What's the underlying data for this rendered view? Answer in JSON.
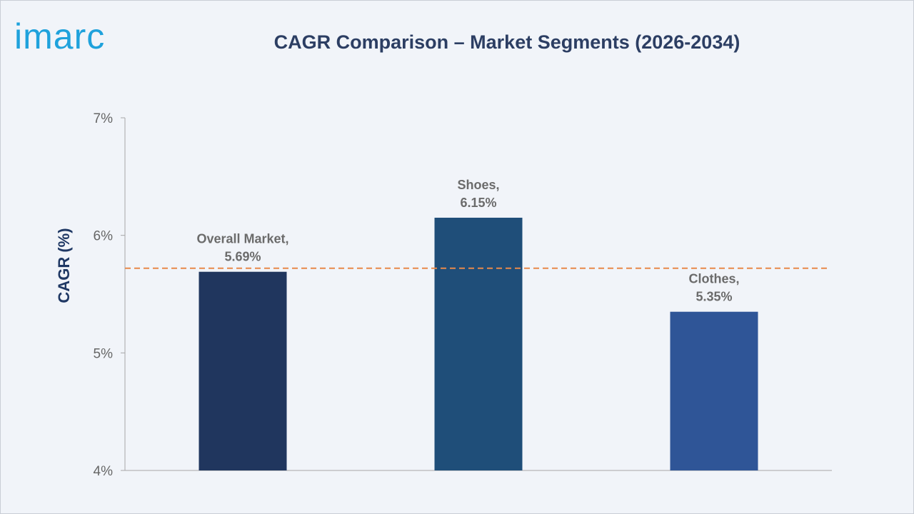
{
  "logo": {
    "text": "imarc",
    "color": "#1fa2dc"
  },
  "chart_data": {
    "type": "bar",
    "title": "CAGR Comparison – Market Segments (2026-2034)",
    "ylabel": "CAGR (%)",
    "xlabel": "",
    "categories": [
      "Overall Market",
      "Shoes",
      "Clothes"
    ],
    "values": [
      5.69,
      6.15,
      5.35
    ],
    "data_labels": [
      [
        "Overall Market,",
        "5.69%"
      ],
      [
        "Shoes,",
        "6.15%"
      ],
      [
        "Clothes,",
        "5.35%"
      ]
    ],
    "bar_colors": [
      "#20365e",
      "#1f4e79",
      "#2f5597"
    ],
    "ylim": [
      4,
      7
    ],
    "yticks": [
      4,
      5,
      6,
      7
    ],
    "ytick_labels": [
      "4%",
      "5%",
      "6%",
      "7%"
    ],
    "reference_line": {
      "value": 5.72,
      "color": "#e8894a",
      "style": "dashed"
    },
    "grid": false
  }
}
